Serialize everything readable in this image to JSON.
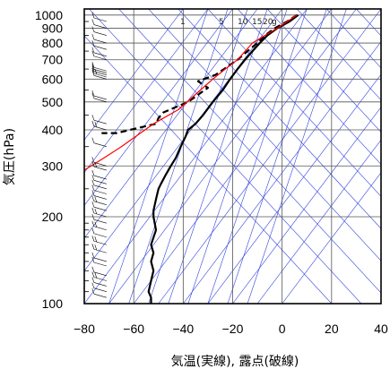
{
  "chart_data": {
    "type": "line",
    "title": "",
    "xlabel": "気温(実線), 露点(破線)",
    "ylabel": "気圧(hPa)",
    "xlim": [
      -80,
      40
    ],
    "ylim": [
      1050,
      100
    ],
    "y_scale": "log",
    "x_ticks": [
      "−80",
      "−60",
      "−40",
      "−20",
      "0",
      "20",
      "40"
    ],
    "x_tick_values": [
      -80,
      -60,
      -40,
      -20,
      0,
      20,
      40
    ],
    "y_ticks": [
      "100",
      "200",
      "300",
      "400",
      "500",
      "600",
      "700",
      "800",
      "900",
      "1000"
    ],
    "y_tick_values": [
      100,
      200,
      300,
      400,
      500,
      600,
      700,
      800,
      900,
      1000
    ],
    "mixing_ratio_labels": [
      "1",
      "5",
      "10",
      "15",
      "20",
      "g"
    ],
    "series": [
      {
        "style": "solid",
        "color": "#000000",
        "x": [
          6.5,
          3,
          -2,
          -6,
          -9,
          -12,
          -15,
          -18,
          -21,
          -24,
          -28,
          -32,
          -35,
          -38,
          -39,
          -41,
          -43,
          -45,
          -47,
          -49,
          -50,
          -51,
          -52,
          -52,
          -51,
          -53,
          -52,
          -53,
          -52,
          -53,
          -54,
          -53,
          -53
        ],
        "y": [
          1000,
          950,
          900,
          850,
          800,
          750,
          700,
          650,
          600,
          550,
          500,
          450,
          420,
          400,
          380,
          350,
          320,
          300,
          280,
          260,
          250,
          230,
          210,
          200,
          180,
          160,
          150,
          140,
          130,
          120,
          110,
          105,
          100
        ]
      },
      {
        "style": "dashed",
        "color": "#000000",
        "x": [
          6,
          2,
          -3,
          -7,
          -10,
          -14,
          -18,
          -27,
          -34,
          -30,
          -38,
          -48,
          -50,
          -51,
          -67,
          -73
        ],
        "y": [
          1000,
          950,
          900,
          850,
          800,
          750,
          700,
          620,
          590,
          560,
          500,
          460,
          440,
          420,
          390,
          390
        ]
      },
      {
        "style": "solid",
        "color": "#ff0000",
        "x": [
          6,
          -2,
          -7,
          -12,
          -18,
          -23,
          -28,
          -33,
          -42,
          -52,
          -65,
          -72,
          -80
        ],
        "y": [
          1000,
          900,
          850,
          800,
          700,
          650,
          600,
          550,
          470,
          420,
          350,
          320,
          290
        ]
      }
    ]
  }
}
